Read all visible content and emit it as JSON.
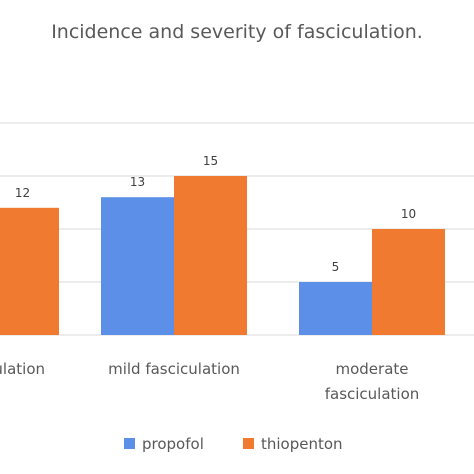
{
  "chart_data": {
    "type": "bar",
    "title": "Incidence and severity of fasciculation.",
    "xlabel": "",
    "ylabel": "",
    "categories": [
      [
        "no fasciculation"
      ],
      [
        "mild fasciculation"
      ],
      [
        "moderate",
        "fasciculation"
      ]
    ],
    "series": [
      {
        "name": "propofol",
        "color": "#5b8fe8",
        "values": [
          null,
          13,
          5
        ]
      },
      {
        "name": "thiopenton",
        "color": "#f07b30",
        "values": [
          12,
          15,
          10
        ]
      }
    ],
    "ylim": [
      0,
      20
    ],
    "grid": true,
    "legend": "bottom"
  }
}
